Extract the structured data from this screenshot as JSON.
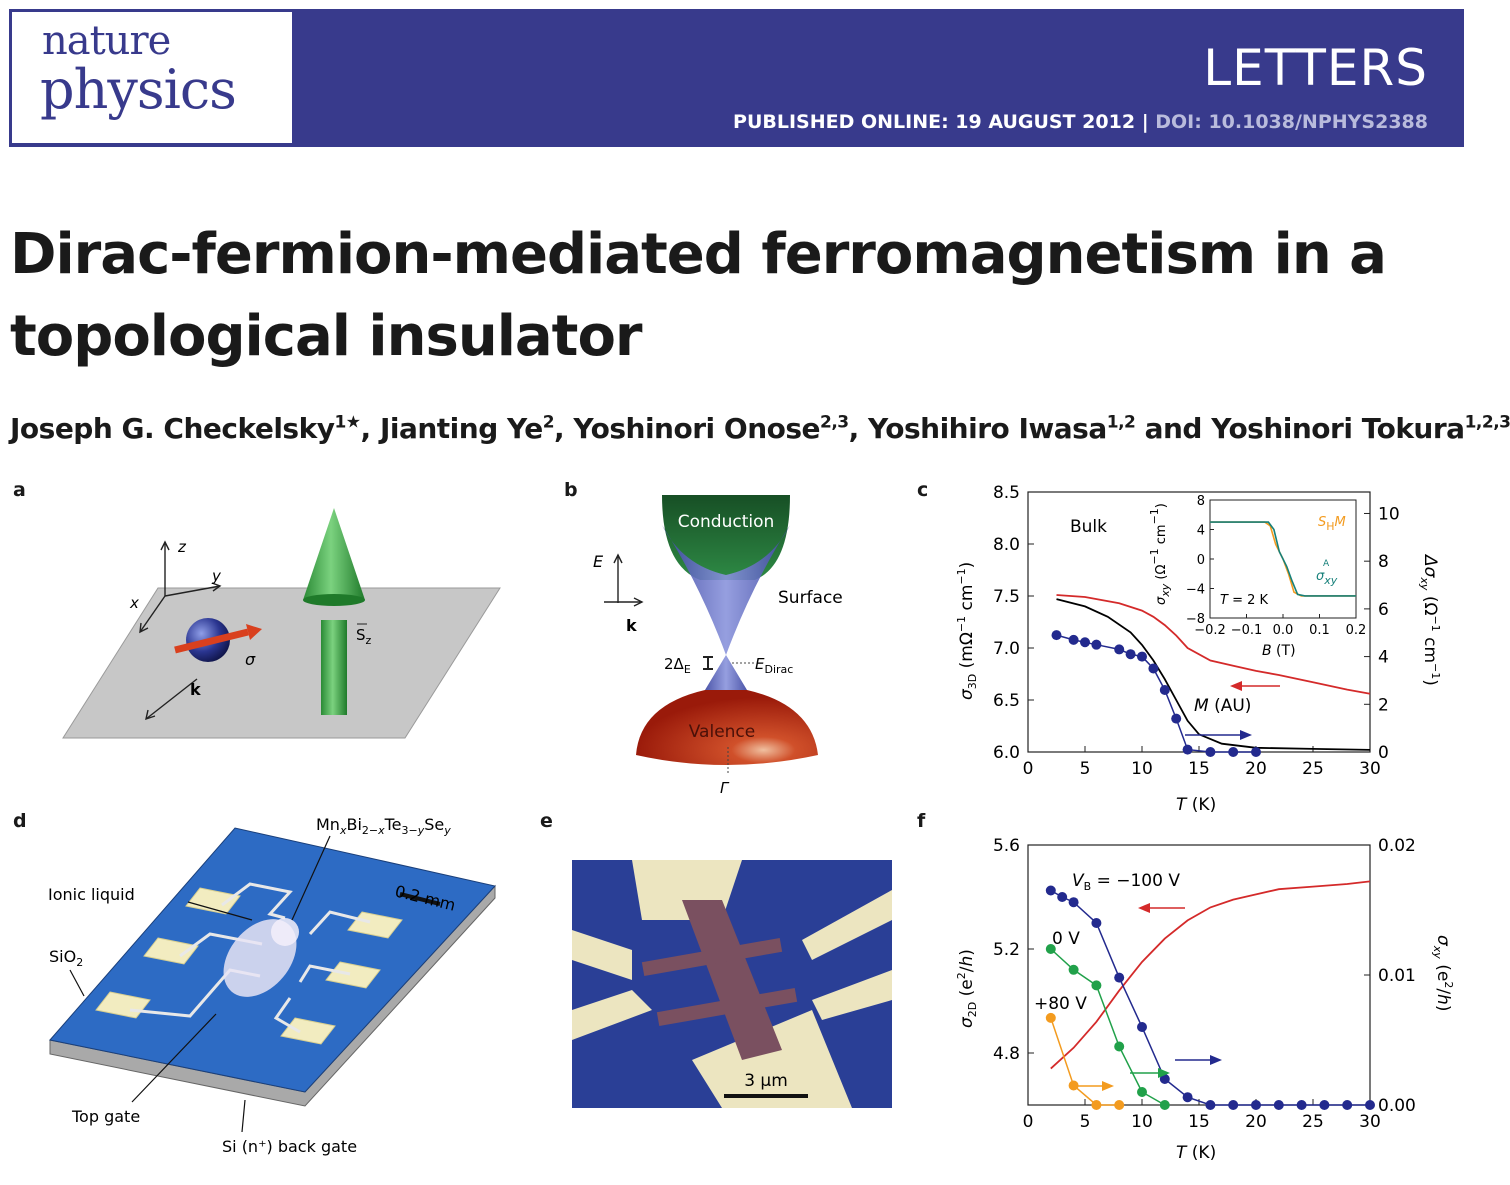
{
  "journal": {
    "line1": "nature",
    "line2": "physics",
    "section": "LETTERS",
    "published": "PUBLISHED ONLINE: 19 AUGUST 2012",
    "separator": " | ",
    "doi": "DOI: 10.1038/NPHYS2388",
    "colors": {
      "banner": "#383a8c"
    }
  },
  "paper": {
    "title_line1": "Dirac-fermion-mediated ferromagnetism in a",
    "title_line2": "topological insulator",
    "authors": [
      {
        "name": "Joseph G. Checkelsky",
        "aff": "1★"
      },
      {
        "name": "Jianting Ye",
        "aff": "2"
      },
      {
        "name": "Yoshinori Onose",
        "aff": "2,3"
      },
      {
        "name": "Yoshihiro Iwasa",
        "aff": "1,2"
      },
      {
        "name": "Yoshinori Tokura",
        "aff": "1,2,3"
      }
    ],
    "author_sep": ", ",
    "author_and": " and "
  },
  "panel_labels": [
    "a",
    "b",
    "c",
    "d",
    "e",
    "f"
  ],
  "panel_a": {
    "axis_z": "z",
    "axis_y": "y",
    "axis_x": "x",
    "k": "k",
    "sigma": "σ",
    "sz": "S",
    "sz_sub": "z"
  },
  "panel_b": {
    "conduction": "Conduction",
    "surface": "Surface",
    "valence": "Valence",
    "E": "E",
    "k": "k",
    "gap": "2Δ",
    "gap_sub": "E",
    "edirac": "E",
    "edirac_sub": "Dirac",
    "gamma": "Γ"
  },
  "panel_d": {
    "compound": "MnxBi2−xTe3−ySey",
    "ionic": "Ionic liquid",
    "scale": "0.2 mm",
    "sio2": "SiO",
    "sio2_sub": "2",
    "topgate": "Top gate",
    "backgate": "Si (n⁺) back gate"
  },
  "panel_e": {
    "scale": "3 μm"
  },
  "chart_data": [
    {
      "type": "line",
      "panel": "c",
      "xlabel": "T (K)",
      "ylabel_left": "σ3D (mΩ−1 cm−1)",
      "ylabel_right": "Δσxy (Ω−1 cm−1)",
      "xlim": [
        0,
        30
      ],
      "ylim_left": [
        6.0,
        8.5
      ],
      "ylim_right": [
        0,
        10.9
      ],
      "x_ticks": [
        0,
        5,
        10,
        15,
        20,
        25,
        30
      ],
      "y_left_ticks": [
        "6.0",
        "6.5",
        "7.0",
        "7.5",
        "8.0",
        "8.5"
      ],
      "y_right_ticks": [
        "0",
        "2",
        "4",
        "6",
        "8",
        "10"
      ],
      "annotations": {
        "bulk": "Bulk",
        "m_label": "M (AU)"
      },
      "series": [
        {
          "name": "",
          "axis": "left",
          "color": "#d42a2a",
          "x": [
            2.5,
            5,
            8,
            10,
            11,
            12,
            13,
            14,
            16,
            18,
            20,
            22,
            25,
            28,
            30
          ],
          "y": [
            7.51,
            7.49,
            7.43,
            7.36,
            7.3,
            7.22,
            7.12,
            7.0,
            6.88,
            6.83,
            6.78,
            6.74,
            6.67,
            6.6,
            6.56
          ]
        },
        {
          "name": "M (AU)",
          "axis": "left",
          "color": "#000000",
          "x": [
            2.5,
            5,
            7,
            9,
            10,
            11,
            12,
            13,
            14,
            15,
            17,
            20,
            25,
            30
          ],
          "y": [
            7.47,
            7.4,
            7.3,
            7.15,
            7.03,
            6.88,
            6.7,
            6.5,
            6.3,
            6.17,
            6.08,
            6.04,
            6.03,
            6.02
          ]
        },
        {
          "name": "",
          "axis": "right",
          "color": "#232a8e",
          "marker": "circle",
          "x": [
            2.5,
            4,
            5,
            6,
            8,
            9,
            10,
            11,
            12,
            13,
            14,
            16,
            18,
            20
          ],
          "y": [
            4.9,
            4.7,
            4.6,
            4.5,
            4.3,
            4.1,
            4.0,
            3.5,
            2.6,
            1.4,
            0.1,
            0,
            0,
            0
          ]
        }
      ],
      "inset": {
        "xlabel": "B (T)",
        "ylabel": "σAxy (Ω−1 cm−1)",
        "xlim": [
          -0.2,
          0.2
        ],
        "ylim": [
          -8,
          8
        ],
        "x_ticks": [
          "−0.2",
          "−0.1",
          "0.0",
          "0.1",
          "0.2"
        ],
        "y_ticks": [
          "8",
          "4",
          "0",
          "−4",
          "−8"
        ],
        "annotation": "T = 2 K",
        "series": [
          {
            "name": "SHM",
            "color": "#f39b1f",
            "x": [
              -0.2,
              -0.05,
              -0.035,
              -0.02,
              0,
              0.015,
              0.03,
              0.05,
              0.2
            ],
            "y": [
              5,
              5,
              4.5,
              2,
              0,
              -2,
              -4.5,
              -5,
              -5
            ]
          },
          {
            "name": "σAxy",
            "color": "#16807a",
            "x": [
              -0.2,
              -0.04,
              -0.025,
              -0.01,
              0.01,
              0.025,
              0.04,
              0.06,
              0.2
            ],
            "y": [
              5,
              5,
              4,
              1,
              -1,
              -3,
              -4.8,
              -5,
              -5
            ]
          }
        ]
      }
    },
    {
      "type": "line",
      "panel": "f",
      "xlabel": "T (K)",
      "ylabel_left": "σ2D (e2/h)",
      "ylabel_right": "σxy (e2/h)",
      "xlim": [
        0,
        30
      ],
      "ylim_left": [
        4.6,
        5.6
      ],
      "ylim_right": [
        0,
        0.02
      ],
      "x_ticks": [
        0,
        5,
        10,
        15,
        20,
        25,
        30
      ],
      "y_left_ticks": [
        "4.8",
        "5.2",
        "5.6"
      ],
      "y_right_ticks": [
        "0.00",
        "0.01",
        "0.02"
      ],
      "series": [
        {
          "name": "",
          "axis": "left",
          "color": "#d42a2a",
          "x": [
            2,
            4,
            6,
            8,
            10,
            12,
            14,
            16,
            18,
            20,
            22,
            25,
            28,
            30
          ],
          "y": [
            4.74,
            4.82,
            4.92,
            5.04,
            5.15,
            5.24,
            5.31,
            5.36,
            5.39,
            5.41,
            5.43,
            5.44,
            5.45,
            5.46
          ]
        },
        {
          "name": "VB = −100 V",
          "axis": "right",
          "color": "#232a8e",
          "marker": "circle",
          "x": [
            2,
            3,
            4,
            6,
            8,
            10,
            12,
            14,
            16,
            18,
            20,
            22,
            24,
            26,
            28,
            30
          ],
          "y": [
            0.0165,
            0.016,
            0.0156,
            0.014,
            0.0098,
            0.006,
            0.002,
            0.0006,
            0,
            0,
            0,
            0,
            0,
            0,
            0,
            0
          ]
        },
        {
          "name": "0 V",
          "axis": "right",
          "color": "#21a14a",
          "marker": "circle",
          "x": [
            2,
            4,
            6,
            8,
            10,
            12
          ],
          "y": [
            0.012,
            0.0104,
            0.0092,
            0.0045,
            0.001,
            0
          ]
        },
        {
          "name": "+80 V",
          "axis": "right",
          "color": "#f39b1f",
          "marker": "circle",
          "x": [
            2,
            4,
            6,
            8
          ],
          "y": [
            0.0067,
            0.0015,
            0,
            0
          ]
        }
      ]
    }
  ]
}
